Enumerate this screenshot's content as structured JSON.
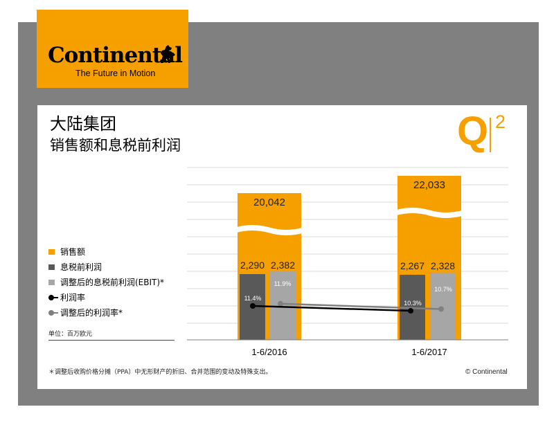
{
  "logo": {
    "wordmark": "Continental",
    "tagline": "The Future in Motion",
    "horse": "rearing-horse-icon"
  },
  "title": "大陆集团",
  "subtitle": "销售额和息税前利润",
  "badge": {
    "letter": "Q",
    "number": "2"
  },
  "legend": [
    {
      "label": "销售额",
      "marker": "square",
      "color": "#F6A000"
    },
    {
      "label": "息税前利润",
      "marker": "square",
      "color": "#595959"
    },
    {
      "label": "调整后的息税前利润(EBIT)*",
      "marker": "square",
      "color": "#A6A6A6"
    },
    {
      "label": "利润率",
      "marker": "line-dot",
      "color": "#000000"
    },
    {
      "label": "调整后的利润率*",
      "marker": "line-dot",
      "color": "#808080"
    }
  ],
  "unit_note": "单位：百万欧元",
  "footnote": "＊调整后收购价格分摊（PPA）中无形财产的折旧、合并范围的变动及特殊支出。",
  "copyright": "© Continental",
  "colors": {
    "accent": "#F6A000",
    "frame": "#808080",
    "dark_bar": "#595959",
    "light_bar": "#A6A6A6"
  },
  "chart_data": {
    "type": "bar",
    "categories": [
      "1-6/2016",
      "1-6/2017"
    ],
    "axis_break": true,
    "series": [
      {
        "name": "销售额",
        "type": "bar",
        "values": [
          20042,
          22033
        ],
        "labels": [
          "20,042",
          "22,033"
        ]
      },
      {
        "name": "息税前利润",
        "type": "bar",
        "values": [
          2290,
          2267
        ],
        "labels": [
          "2,290",
          "2,267"
        ]
      },
      {
        "name": "调整后的息税前利润(EBIT)*",
        "type": "bar",
        "values": [
          2382,
          2328
        ],
        "labels": [
          "2,382",
          "2,328"
        ]
      },
      {
        "name": "利润率",
        "type": "line",
        "values": [
          11.4,
          10.3
        ],
        "labels": [
          "11.4%",
          "10.3%"
        ]
      },
      {
        "name": "调整后的利润率*",
        "type": "line",
        "values": [
          11.9,
          10.7
        ],
        "labels": [
          "11.9%",
          "10.7%"
        ]
      }
    ],
    "grid": true
  }
}
